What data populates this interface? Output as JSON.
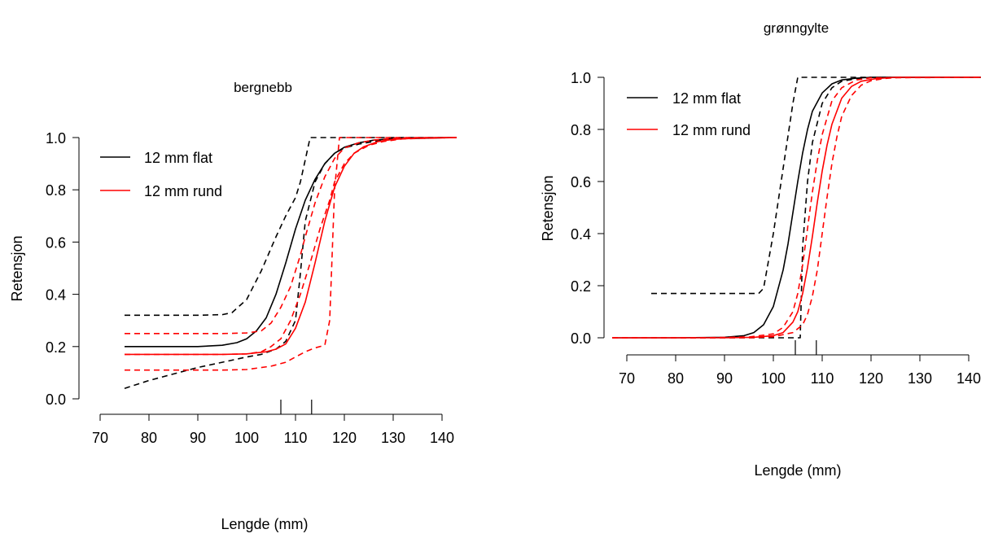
{
  "chart_data": [
    {
      "type": "line",
      "title": "bergnebb",
      "xlabel": "Lengde (mm)",
      "ylabel": "Retensjon",
      "xlim": [
        70,
        140
      ],
      "ylim": [
        0,
        1
      ],
      "x_ticks": [
        "70",
        "80",
        "90",
        "100",
        "110",
        "120",
        "130",
        "140"
      ],
      "y_ticks": [
        "0.0",
        "0.2",
        "0.4",
        "0.6",
        "0.8",
        "1.0"
      ],
      "legend_position": "top-left",
      "legend": [
        "12 mm flat",
        "12 mm rund"
      ],
      "marker_x": [
        107,
        113.3
      ],
      "series": [
        {
          "name": "12 mm flat",
          "color": "#000000",
          "dash": false,
          "x": [
            75,
            80,
            85,
            90,
            95,
            98,
            100,
            102,
            104,
            106,
            108,
            110,
            112,
            114,
            116,
            118,
            120,
            123,
            126,
            130,
            135,
            143
          ],
          "y": [
            0.2,
            0.2,
            0.2,
            0.2,
            0.205,
            0.215,
            0.23,
            0.26,
            0.31,
            0.4,
            0.52,
            0.65,
            0.76,
            0.84,
            0.9,
            0.94,
            0.963,
            0.98,
            0.99,
            0.996,
            0.999,
            1.0
          ]
        },
        {
          "name": "",
          "color": "#000000",
          "dash": true,
          "x": [
            75,
            80,
            85,
            90,
            95,
            97,
            100,
            103,
            106,
            108,
            110,
            111,
            113,
            143
          ],
          "y": [
            0.32,
            0.32,
            0.32,
            0.32,
            0.322,
            0.33,
            0.38,
            0.49,
            0.62,
            0.7,
            0.77,
            0.83,
            1.0,
            1.0
          ]
        },
        {
          "name": "",
          "color": "#000000",
          "dash": true,
          "x": [
            75,
            80,
            85,
            90,
            95,
            100,
            103,
            106,
            108,
            110,
            111,
            112,
            114,
            116,
            118,
            120,
            123,
            126,
            130,
            143
          ],
          "y": [
            0.04,
            0.07,
            0.095,
            0.12,
            0.14,
            0.16,
            0.17,
            0.19,
            0.22,
            0.3,
            0.48,
            0.68,
            0.83,
            0.9,
            0.94,
            0.96,
            0.975,
            0.985,
            0.995,
            1.0
          ]
        },
        {
          "name": "12 mm rund",
          "color": "#ff0000",
          "dash": false,
          "x": [
            75,
            80,
            85,
            90,
            95,
            100,
            104,
            106,
            108,
            110,
            112,
            114,
            116,
            118,
            120,
            122,
            124,
            127,
            130,
            135,
            143
          ],
          "y": [
            0.17,
            0.17,
            0.17,
            0.17,
            0.17,
            0.172,
            0.18,
            0.19,
            0.21,
            0.27,
            0.37,
            0.52,
            0.68,
            0.81,
            0.89,
            0.94,
            0.965,
            0.985,
            0.993,
            0.998,
            1.0
          ]
        },
        {
          "name": "",
          "color": "#ff0000",
          "dash": true,
          "x": [
            75,
            80,
            85,
            90,
            95,
            100,
            103,
            105,
            107,
            109,
            111,
            112,
            114,
            116,
            118,
            120,
            123,
            126,
            130,
            143
          ],
          "y": [
            0.25,
            0.25,
            0.25,
            0.25,
            0.25,
            0.252,
            0.26,
            0.29,
            0.35,
            0.43,
            0.55,
            0.62,
            0.75,
            0.85,
            0.92,
            0.96,
            0.98,
            0.99,
            0.997,
            1.0
          ]
        },
        {
          "name": "",
          "color": "#ff0000",
          "dash": true,
          "x": [
            75,
            80,
            85,
            90,
            95,
            100,
            105,
            108,
            110,
            112,
            114,
            116,
            117,
            118,
            119,
            143
          ],
          "y": [
            0.11,
            0.11,
            0.11,
            0.11,
            0.11,
            0.112,
            0.125,
            0.14,
            0.16,
            0.18,
            0.195,
            0.205,
            0.3,
            0.8,
            1.0,
            1.0
          ]
        },
        {
          "name": "",
          "color": "#ff0000",
          "dash": true,
          "x": [
            75,
            85,
            95,
            100,
            103,
            105,
            107,
            109,
            111,
            113,
            115,
            117,
            118,
            120,
            122,
            125,
            128,
            132,
            143
          ],
          "y": [
            0.17,
            0.17,
            0.17,
            0.172,
            0.18,
            0.2,
            0.23,
            0.3,
            0.4,
            0.52,
            0.65,
            0.76,
            0.83,
            0.9,
            0.94,
            0.97,
            0.985,
            0.995,
            1.0
          ]
        }
      ]
    },
    {
      "type": "line",
      "title": "grønngylte",
      "xlabel": "Lengde (mm)",
      "ylabel": "Retensjon",
      "xlim": [
        70,
        140
      ],
      "ylim": [
        0,
        1
      ],
      "x_ticks": [
        "70",
        "80",
        "90",
        "100",
        "110",
        "120",
        "130",
        "140"
      ],
      "y_ticks": [
        "0.0",
        "0.2",
        "0.4",
        "0.6",
        "0.8",
        "1.0"
      ],
      "legend_position": "top-left",
      "legend": [
        "12 mm flat",
        "12 mm rund"
      ],
      "marker_x": [
        104.5,
        108.8
      ],
      "series": [
        {
          "name": "12 mm flat",
          "color": "#000000",
          "dash": false,
          "x": [
            67,
            80,
            90,
            94,
            96,
            98,
            100,
            102,
            103,
            104,
            105,
            106,
            107,
            108,
            110,
            112,
            114,
            117,
            120,
            143
          ],
          "y": [
            0.0,
            0.0,
            0.002,
            0.008,
            0.02,
            0.05,
            0.12,
            0.26,
            0.36,
            0.48,
            0.6,
            0.71,
            0.8,
            0.87,
            0.94,
            0.975,
            0.99,
            0.997,
            1.0,
            1.0
          ]
        },
        {
          "name": "",
          "color": "#000000",
          "dash": true,
          "x": [
            75,
            80,
            85,
            90,
            95,
            97,
            98,
            100,
            102,
            104,
            105,
            143
          ],
          "y": [
            0.17,
            0.17,
            0.17,
            0.17,
            0.17,
            0.17,
            0.19,
            0.4,
            0.65,
            0.9,
            1.0,
            1.0
          ]
        },
        {
          "name": "",
          "color": "#000000",
          "dash": true,
          "x": [
            75,
            85,
            95,
            100,
            103,
            104,
            105,
            105.5,
            106,
            107,
            108,
            110,
            112,
            114,
            117,
            120,
            143
          ],
          "y": [
            0.0,
            0.0,
            0.0,
            0.0,
            0.0,
            0.0,
            0.0,
            0.0,
            0.35,
            0.6,
            0.75,
            0.9,
            0.96,
            0.985,
            0.995,
            1.0,
            1.0
          ]
        },
        {
          "name": "12 mm rund",
          "color": "#ff0000",
          "dash": false,
          "x": [
            67,
            80,
            90,
            96,
            100,
            102,
            104,
            105,
            106,
            107,
            108,
            109,
            110,
            111,
            112,
            114,
            116,
            118,
            121,
            125,
            143
          ],
          "y": [
            0.0,
            0.0,
            0.0,
            0.002,
            0.008,
            0.02,
            0.06,
            0.1,
            0.17,
            0.27,
            0.39,
            0.52,
            0.64,
            0.74,
            0.82,
            0.92,
            0.965,
            0.985,
            0.995,
            1.0,
            1.0
          ]
        },
        {
          "name": "",
          "color": "#ff0000",
          "dash": true,
          "x": [
            67,
            85,
            95,
            100,
            102,
            104,
            105,
            106,
            107,
            108,
            109,
            110,
            112,
            114,
            117,
            120,
            143
          ],
          "y": [
            0.0,
            0.0,
            0.003,
            0.015,
            0.04,
            0.1,
            0.17,
            0.28,
            0.42,
            0.56,
            0.68,
            0.78,
            0.91,
            0.96,
            0.99,
            0.998,
            1.0
          ]
        },
        {
          "name": "",
          "color": "#ff0000",
          "dash": true,
          "x": [
            67,
            85,
            95,
            100,
            104,
            106,
            107,
            108,
            109,
            110,
            111,
            112,
            113,
            114,
            116,
            118,
            120,
            123,
            126,
            143
          ],
          "y": [
            0.0,
            0.0,
            0.0,
            0.004,
            0.02,
            0.05,
            0.09,
            0.16,
            0.26,
            0.4,
            0.54,
            0.67,
            0.77,
            0.85,
            0.93,
            0.97,
            0.987,
            0.996,
            1.0,
            1.0
          ]
        }
      ]
    }
  ]
}
